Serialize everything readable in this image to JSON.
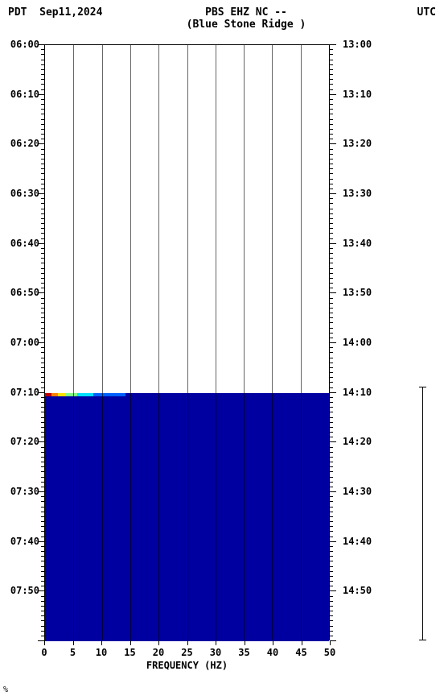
{
  "header": {
    "title_line1": "PBS EHZ NC --",
    "title_line2": "(Blue Stone Ridge )",
    "tz_left": "PDT",
    "date": "Sep11,2024",
    "tz_right": "UTC"
  },
  "chart": {
    "type": "spectrogram",
    "xlabel": "FREQUENCY (HZ)",
    "x_ticks": [
      0,
      5,
      10,
      15,
      20,
      25,
      30,
      35,
      40,
      45,
      50
    ],
    "xlim": [
      0,
      50
    ],
    "y_left_labels": [
      "06:00",
      "06:10",
      "06:20",
      "06:30",
      "06:40",
      "06:50",
      "07:00",
      "07:10",
      "07:20",
      "07:30",
      "07:40",
      "07:50"
    ],
    "y_right_labels": [
      "13:00",
      "13:10",
      "13:20",
      "13:30",
      "13:40",
      "13:50",
      "14:00",
      "14:10",
      "14:20",
      "14:30",
      "14:40",
      "14:50"
    ],
    "y_major_count": 12,
    "y_minor_per_major": 10,
    "data_start_index": 7,
    "background_color": "#ffffff",
    "data_color": "#0000a0",
    "grid_color": "#000000",
    "transition_colors": [
      "#c00000",
      "#ff8000",
      "#ffe000",
      "#80ff80",
      "#00e0ff",
      "#0060ff",
      "#0000a0"
    ],
    "tick_fontsize": 12,
    "title_fontsize": 13
  },
  "footer": {
    "mark": "%"
  }
}
